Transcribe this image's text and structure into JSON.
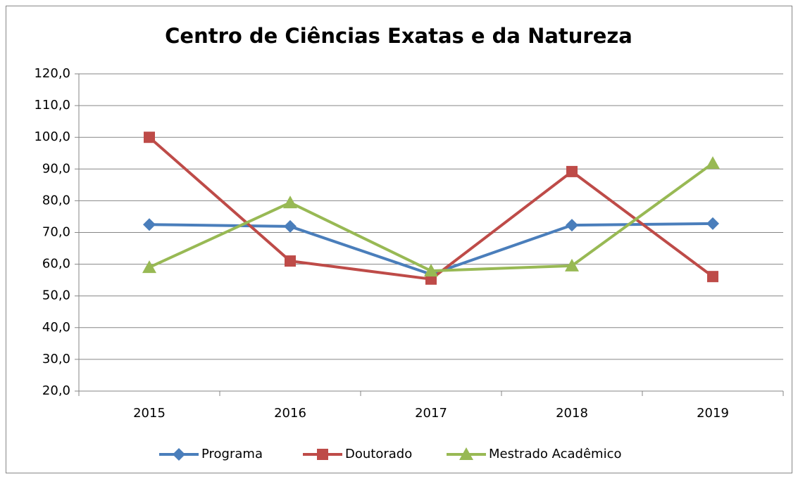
{
  "chart_data": {
    "type": "line",
    "title": "Centro de Ciências Exatas e da Natureza",
    "categories": [
      "2015",
      "2016",
      "2017",
      "2018",
      "2019"
    ],
    "series": [
      {
        "name": "Programa",
        "color": "#4a7ebb",
        "marker": "diamond",
        "values": [
          72.5,
          71.9,
          56.8,
          72.3,
          72.8
        ]
      },
      {
        "name": "Doutorado",
        "color": "#be4b48",
        "marker": "square",
        "values": [
          100.0,
          61.0,
          55.3,
          89.2,
          56.1
        ]
      },
      {
        "name": "Mestrado Acadêmico",
        "color": "#98b954",
        "marker": "triangle",
        "values": [
          59.0,
          79.4,
          57.9,
          59.5,
          91.8
        ]
      }
    ],
    "ylim": [
      20,
      120
    ],
    "yticks": [
      {
        "value": 20,
        "label": "20,0"
      },
      {
        "value": 30,
        "label": "30,0"
      },
      {
        "value": 40,
        "label": "40,0"
      },
      {
        "value": 50,
        "label": "50,0"
      },
      {
        "value": 60,
        "label": "60,0"
      },
      {
        "value": 70,
        "label": "70,0"
      },
      {
        "value": 80,
        "label": "80,0"
      },
      {
        "value": 90,
        "label": "90,0"
      },
      {
        "value": 100,
        "label": "100,0"
      },
      {
        "value": 110,
        "label": "110,0"
      },
      {
        "value": 120,
        "label": "120,0"
      }
    ],
    "grid": true,
    "legend": "bottom"
  }
}
